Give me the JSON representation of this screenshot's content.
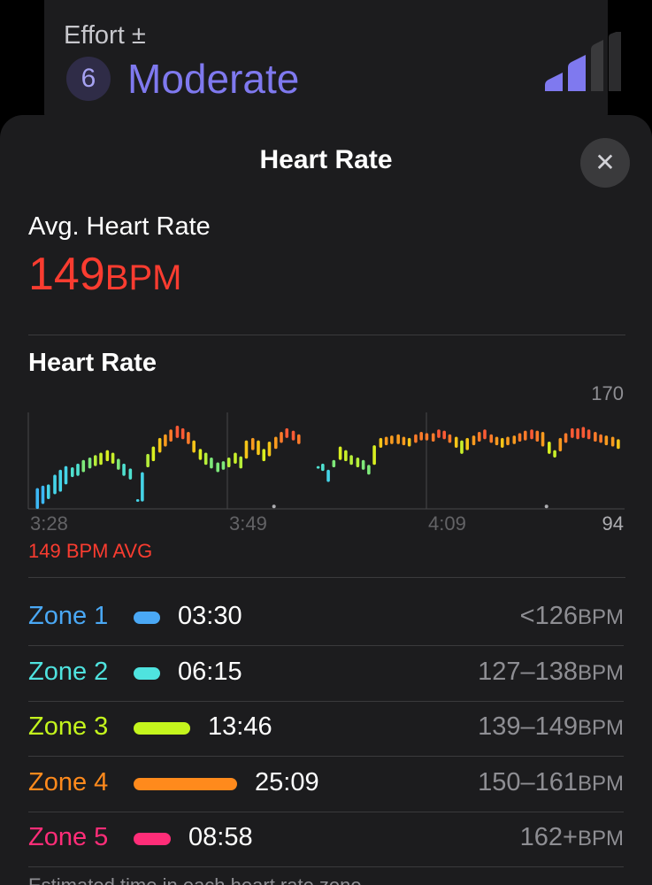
{
  "effort": {
    "label": "Effort ±",
    "score": "6",
    "level": "Moderate",
    "level_fraction": 0.6,
    "accent": "#7f79ef",
    "icon": "signal-bars-icon"
  },
  "sheet": {
    "title": "Heart Rate",
    "close_icon": "close-icon"
  },
  "average": {
    "label": "Avg. Heart Rate",
    "value": "149",
    "unit": "BPM",
    "color": "#fa3c30"
  },
  "chart_section": {
    "title": "Heart Rate",
    "avg_caption": "149 BPM AVG"
  },
  "chart_data": {
    "type": "range-bar",
    "y_max_label": "170",
    "y_min_label": "94",
    "ylim": [
      94,
      170
    ],
    "x_tick_labels": [
      "3:28",
      "3:49",
      "4:09"
    ],
    "x_range": [
      0,
      60
    ],
    "bars": [
      {
        "x": 0.6,
        "low": 94,
        "high": 111,
        "color": "#3cb8f5"
      },
      {
        "x": 1.2,
        "low": 98,
        "high": 113,
        "color": "#3cb8f5"
      },
      {
        "x": 1.8,
        "low": 102,
        "high": 114,
        "color": "#45d4e8"
      },
      {
        "x": 2.5,
        "low": 106,
        "high": 122,
        "color": "#45d4e8"
      },
      {
        "x": 3.1,
        "low": 108,
        "high": 126,
        "color": "#45d4e8"
      },
      {
        "x": 3.7,
        "low": 114,
        "high": 129,
        "color": "#45d4e8"
      },
      {
        "x": 4.4,
        "low": 120,
        "high": 128,
        "color": "#4fe0cf"
      },
      {
        "x": 5.0,
        "low": 121,
        "high": 131,
        "color": "#4fe0cf"
      },
      {
        "x": 5.6,
        "low": 124,
        "high": 134,
        "color": "#7ee87a"
      },
      {
        "x": 6.3,
        "low": 127,
        "high": 136,
        "color": "#7ee87a"
      },
      {
        "x": 6.9,
        "low": 129,
        "high": 138,
        "color": "#b6ee3a"
      },
      {
        "x": 7.5,
        "low": 130,
        "high": 140,
        "color": "#c8ef2a"
      },
      {
        "x": 8.2,
        "low": 133,
        "high": 142,
        "color": "#d9ef20"
      },
      {
        "x": 8.8,
        "low": 131,
        "high": 140,
        "color": "#c8ef2a"
      },
      {
        "x": 9.4,
        "low": 126,
        "high": 135,
        "color": "#7ee87a"
      },
      {
        "x": 10.0,
        "low": 121,
        "high": 131,
        "color": "#4fe0cf"
      },
      {
        "x": 10.7,
        "low": 118,
        "high": 127,
        "color": "#4fe0cf"
      },
      {
        "x": 11.5,
        "low": 100,
        "high": 102,
        "color": "#45d4e8"
      },
      {
        "x": 12.0,
        "low": 100,
        "high": 124,
        "color": "#45d4e8"
      },
      {
        "x": 12.6,
        "low": 128,
        "high": 139,
        "color": "#b6ee3a"
      },
      {
        "x": 13.2,
        "low": 133,
        "high": 145,
        "color": "#d9ef20"
      },
      {
        "x": 13.9,
        "low": 140,
        "high": 152,
        "color": "#f5c518"
      },
      {
        "x": 14.5,
        "low": 145,
        "high": 155,
        "color": "#f79a1f"
      },
      {
        "x": 15.1,
        "low": 149,
        "high": 159,
        "color": "#fa7a2a"
      },
      {
        "x": 15.8,
        "low": 152,
        "high": 162,
        "color": "#fa5a35"
      },
      {
        "x": 16.4,
        "low": 151,
        "high": 160,
        "color": "#fa5a35"
      },
      {
        "x": 17.0,
        "low": 147,
        "high": 157,
        "color": "#fa7a2a"
      },
      {
        "x": 17.6,
        "low": 140,
        "high": 150,
        "color": "#f5c518"
      },
      {
        "x": 18.3,
        "low": 134,
        "high": 143,
        "color": "#d9ef20"
      },
      {
        "x": 18.9,
        "low": 130,
        "high": 140,
        "color": "#b6ee3a"
      },
      {
        "x": 19.5,
        "low": 127,
        "high": 136,
        "color": "#7ee87a"
      },
      {
        "x": 20.2,
        "low": 124,
        "high": 132,
        "color": "#7ee87a"
      },
      {
        "x": 20.8,
        "low": 126,
        "high": 133,
        "color": "#7ee87a"
      },
      {
        "x": 21.4,
        "low": 128,
        "high": 136,
        "color": "#b6ee3a"
      },
      {
        "x": 22.1,
        "low": 131,
        "high": 140,
        "color": "#c8ef2a"
      },
      {
        "x": 22.7,
        "low": 127,
        "high": 137,
        "color": "#b6ee3a"
      },
      {
        "x": 23.3,
        "low": 135,
        "high": 150,
        "color": "#f5c518"
      },
      {
        "x": 24.0,
        "low": 142,
        "high": 152,
        "color": "#f79a1f"
      },
      {
        "x": 24.6,
        "low": 138,
        "high": 150,
        "color": "#f5c518"
      },
      {
        "x": 25.2,
        "low": 133,
        "high": 143,
        "color": "#d9ef20"
      },
      {
        "x": 25.8,
        "low": 137,
        "high": 149,
        "color": "#f5c518"
      },
      {
        "x": 26.5,
        "low": 143,
        "high": 153,
        "color": "#f79a1f"
      },
      {
        "x": 27.1,
        "low": 148,
        "high": 157,
        "color": "#fa7a2a"
      },
      {
        "x": 27.7,
        "low": 152,
        "high": 160,
        "color": "#fa5a35"
      },
      {
        "x": 28.4,
        "low": 150,
        "high": 158,
        "color": "#fa5a35"
      },
      {
        "x": 29.0,
        "low": 147,
        "high": 155,
        "color": "#fa7a2a"
      },
      {
        "x": 31.1,
        "low": 127,
        "high": 129,
        "color": "#4fe0cf"
      },
      {
        "x": 31.6,
        "low": 125,
        "high": 131,
        "color": "#4fe0cf"
      },
      {
        "x": 32.2,
        "low": 116,
        "high": 126,
        "color": "#45d4e8"
      },
      {
        "x": 32.8,
        "low": 128,
        "high": 134,
        "color": "#7ee87a"
      },
      {
        "x": 33.5,
        "low": 134,
        "high": 145,
        "color": "#d9ef20"
      },
      {
        "x": 34.1,
        "low": 133,
        "high": 142,
        "color": "#c8ef2a"
      },
      {
        "x": 34.7,
        "low": 130,
        "high": 138,
        "color": "#b6ee3a"
      },
      {
        "x": 35.4,
        "low": 128,
        "high": 136,
        "color": "#b6ee3a"
      },
      {
        "x": 36.0,
        "low": 126,
        "high": 134,
        "color": "#7ee87a"
      },
      {
        "x": 36.6,
        "low": 122,
        "high": 130,
        "color": "#7ee87a"
      },
      {
        "x": 37.2,
        "low": 130,
        "high": 146,
        "color": "#d9ef20"
      },
      {
        "x": 37.9,
        "low": 144,
        "high": 152,
        "color": "#f5c518"
      },
      {
        "x": 38.5,
        "low": 146,
        "high": 153,
        "color": "#f79a1f"
      },
      {
        "x": 39.1,
        "low": 147,
        "high": 154,
        "color": "#f79a1f"
      },
      {
        "x": 39.8,
        "low": 147,
        "high": 155,
        "color": "#f79a1f"
      },
      {
        "x": 40.4,
        "low": 146,
        "high": 153,
        "color": "#f79a1f"
      },
      {
        "x": 41.0,
        "low": 145,
        "high": 152,
        "color": "#f5c518"
      },
      {
        "x": 41.7,
        "low": 148,
        "high": 155,
        "color": "#fa7a2a"
      },
      {
        "x": 42.3,
        "low": 150,
        "high": 157,
        "color": "#fa7a2a"
      },
      {
        "x": 42.9,
        "low": 150,
        "high": 156,
        "color": "#fa7a2a"
      },
      {
        "x": 43.6,
        "low": 149,
        "high": 156,
        "color": "#fa7a2a"
      },
      {
        "x": 44.2,
        "low": 152,
        "high": 159,
        "color": "#fa5a35"
      },
      {
        "x": 44.8,
        "low": 151,
        "high": 158,
        "color": "#fa5a35"
      },
      {
        "x": 45.4,
        "low": 148,
        "high": 155,
        "color": "#fa7a2a"
      },
      {
        "x": 46.1,
        "low": 144,
        "high": 153,
        "color": "#f5c518"
      },
      {
        "x": 46.7,
        "low": 139,
        "high": 150,
        "color": "#c8ef2a"
      },
      {
        "x": 47.3,
        "low": 142,
        "high": 152,
        "color": "#f5c518"
      },
      {
        "x": 48.0,
        "low": 146,
        "high": 154,
        "color": "#f79a1f"
      },
      {
        "x": 48.6,
        "low": 149,
        "high": 157,
        "color": "#fa7a2a"
      },
      {
        "x": 49.2,
        "low": 151,
        "high": 159,
        "color": "#fa5a35"
      },
      {
        "x": 49.9,
        "low": 148,
        "high": 155,
        "color": "#fa7a2a"
      },
      {
        "x": 50.5,
        "low": 146,
        "high": 153,
        "color": "#f79a1f"
      },
      {
        "x": 51.1,
        "low": 144,
        "high": 152,
        "color": "#f5c518"
      },
      {
        "x": 51.7,
        "low": 146,
        "high": 153,
        "color": "#f79a1f"
      },
      {
        "x": 52.4,
        "low": 147,
        "high": 154,
        "color": "#f79a1f"
      },
      {
        "x": 53.0,
        "low": 149,
        "high": 156,
        "color": "#fa7a2a"
      },
      {
        "x": 53.6,
        "low": 150,
        "high": 158,
        "color": "#fa7a2a"
      },
      {
        "x": 54.3,
        "low": 151,
        "high": 159,
        "color": "#fa5a35"
      },
      {
        "x": 54.9,
        "low": 149,
        "high": 158,
        "color": "#fa7a2a"
      },
      {
        "x": 55.5,
        "low": 145,
        "high": 157,
        "color": "#f79a1f"
      },
      {
        "x": 56.2,
        "low": 139,
        "high": 149,
        "color": "#d9ef20"
      },
      {
        "x": 56.8,
        "low": 136,
        "high": 142,
        "color": "#c8ef2a"
      },
      {
        "x": 57.4,
        "low": 141,
        "high": 152,
        "color": "#f79a1f"
      },
      {
        "x": 58.0,
        "low": 148,
        "high": 156,
        "color": "#fa7a2a"
      },
      {
        "x": 58.7,
        "low": 152,
        "high": 160,
        "color": "#fa5a35"
      },
      {
        "x": 59.3,
        "low": 151,
        "high": 160,
        "color": "#fa5a35"
      },
      {
        "x": 59.9,
        "low": 152,
        "high": 161,
        "color": "#fa5a35"
      },
      {
        "x": 60.5,
        "low": 151,
        "high": 159,
        "color": "#fa5a35"
      },
      {
        "x": 61.2,
        "low": 149,
        "high": 157,
        "color": "#fa7a2a"
      },
      {
        "x": 61.8,
        "low": 148,
        "high": 155,
        "color": "#fa7a2a"
      },
      {
        "x": 62.4,
        "low": 146,
        "high": 154,
        "color": "#f79a1f"
      },
      {
        "x": 63.1,
        "low": 145,
        "high": 153,
        "color": "#f79a1f"
      },
      {
        "x": 63.7,
        "low": 143,
        "high": 151,
        "color": "#f5c518"
      }
    ],
    "markers": [
      {
        "x": 26.3,
        "value": 96
      },
      {
        "x": 55.9,
        "value": 96
      }
    ]
  },
  "zones": [
    {
      "name": "Zone 1",
      "time": "03:30",
      "range": "<126",
      "unit": "BPM",
      "color": "#4aa8f5",
      "minutes": 3.5
    },
    {
      "name": "Zone 2",
      "time": "06:15",
      "range": "127–138",
      "unit": "BPM",
      "color": "#4fe3df",
      "minutes": 6.25
    },
    {
      "name": "Zone 3",
      "time": "13:46",
      "range": "139–149",
      "unit": "BPM",
      "color": "#c4f51d",
      "minutes": 13.77
    },
    {
      "name": "Zone 4",
      "time": "25:09",
      "range": "150–161",
      "unit": "BPM",
      "color": "#ff8a1c",
      "minutes": 25.15
    },
    {
      "name": "Zone 5",
      "time": "08:58",
      "range": "162+",
      "unit": "BPM",
      "color": "#ff2d78",
      "minutes": 8.97
    }
  ],
  "footnote": "Estimated time in each heart rate zone."
}
